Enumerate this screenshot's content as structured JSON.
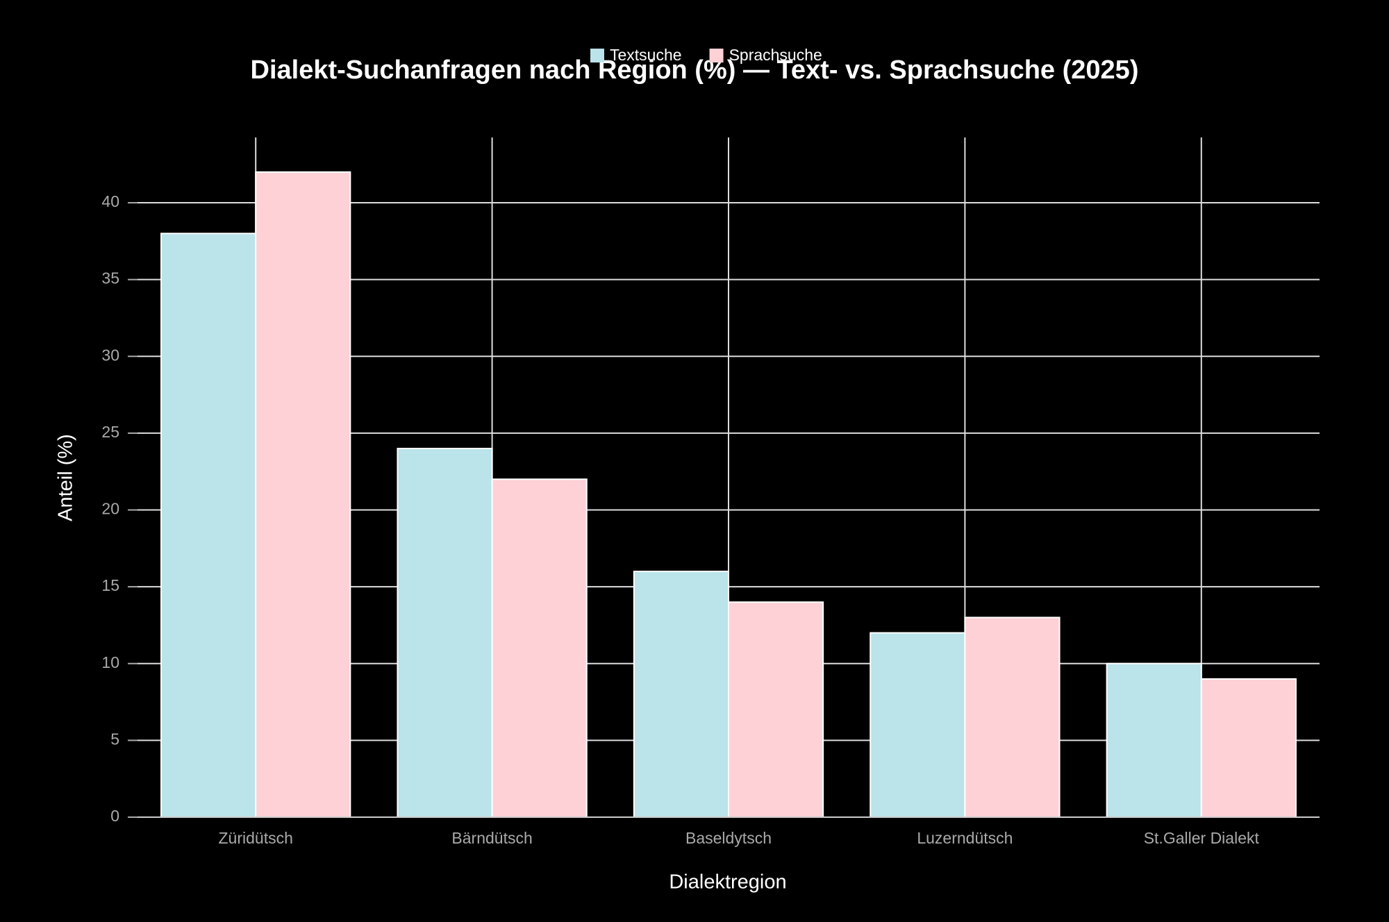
{
  "chart_data": {
    "type": "grouped_bar",
    "title": "Dialekt-Suchanfragen nach Region (%) — Text- vs. Sprachsuche (2025)",
    "x_label": "Dialektregion",
    "y_label": "Anteil (%)",
    "categories": [
      "Züridütsch",
      "Bärndütsch",
      "Baseldytsch",
      "Luzerndütsch",
      "St.Galler Dialekt"
    ],
    "series": [
      {
        "name": "Textsuche",
        "color": "#bae3ea",
        "values": [
          38,
          24,
          16,
          12,
          10
        ]
      },
      {
        "name": "Sprachsuche",
        "color": "#fdd1d6",
        "values": [
          42,
          22,
          14,
          13,
          9
        ]
      }
    ],
    "ylim": [
      0,
      44.25
    ],
    "yticks": [
      0,
      5,
      10,
      15,
      20,
      25,
      30,
      35,
      40
    ],
    "grid": true,
    "legend": "top"
  }
}
